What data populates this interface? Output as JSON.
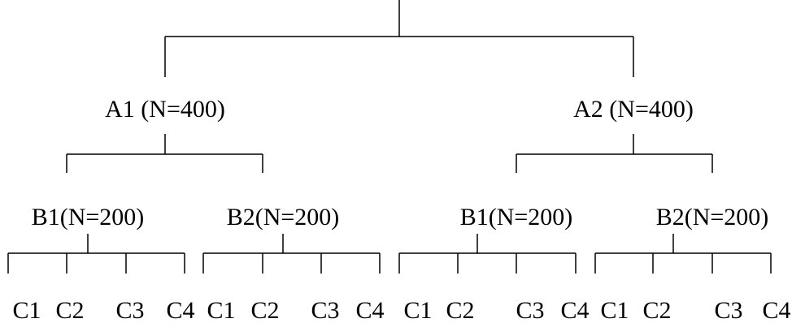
{
  "groups": [
    {
      "label": "A1 (N=400)",
      "subgroups": [
        {
          "label": "B1(N=200)",
          "leaves": [
            "C1",
            "C2",
            "C3",
            "C4"
          ]
        },
        {
          "label": "B2(N=200)",
          "leaves": [
            "C1",
            "C2",
            "C3",
            "C4"
          ]
        }
      ]
    },
    {
      "label": "A2 (N=400)",
      "subgroups": [
        {
          "label": "B1(N=200)",
          "leaves": [
            "C1",
            "C2",
            "C3",
            "C4"
          ]
        },
        {
          "label": "B2(N=200)",
          "leaves": [
            "C1",
            "C2",
            "C3",
            "C4"
          ]
        }
      ]
    }
  ]
}
